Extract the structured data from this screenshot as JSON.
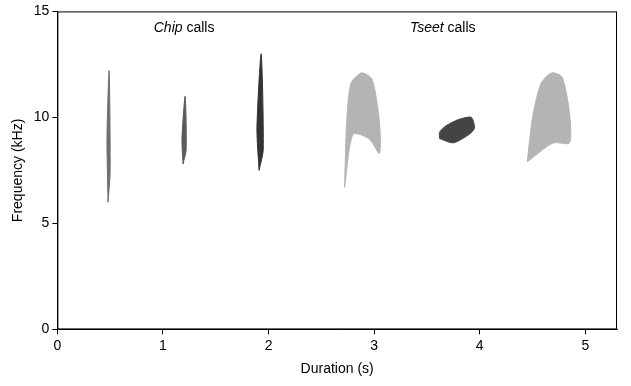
{
  "chart_data": {
    "type": "area",
    "x_label": "Duration (s)",
    "y_label": "Frequency (kHz)",
    "xlim": [
      0,
      5.3
    ],
    "xticks": [
      0,
      1,
      2,
      3,
      4,
      5
    ],
    "ylim": [
      0,
      15
    ],
    "yticks": [
      0,
      5,
      10,
      15
    ],
    "grid": false,
    "annotations": [
      {
        "text": "Chip calls",
        "x": 1.2,
        "y": 14.2
      },
      {
        "text": "Tseet calls",
        "x": 3.65,
        "y": 14.2
      }
    ],
    "series": [
      {
        "color": "#6e6e6e",
        "x": [
          0.48,
          0.5,
          0.49,
          0.47,
          0.48
        ],
        "values": [
          6.0,
          7.5,
          12.2,
          9.0,
          6.0
        ]
      },
      {
        "color": "#5a5a5a",
        "x": [
          1.19,
          1.22,
          1.21,
          1.18,
          1.19
        ],
        "values": [
          7.8,
          8.5,
          11.0,
          9.0,
          7.8
        ]
      },
      {
        "color": "#333333",
        "x": [
          1.91,
          1.95,
          1.93,
          1.89,
          1.91
        ],
        "values": [
          7.5,
          8.5,
          13.0,
          9.5,
          7.5
        ]
      },
      {
        "color": "#b4b4b4",
        "x": [
          2.72,
          2.8,
          2.95,
          3.05,
          3.05,
          2.98,
          2.88,
          2.78,
          2.74,
          2.72
        ],
        "values": [
          6.7,
          9.2,
          9.0,
          8.3,
          9.8,
          11.8,
          12.1,
          11.6,
          9.8,
          6.7
        ]
      },
      {
        "color": "#444444",
        "x": [
          3.62,
          3.75,
          3.9,
          3.95,
          3.92,
          3.8,
          3.68,
          3.62,
          3.62
        ],
        "values": [
          9.0,
          8.8,
          9.2,
          9.5,
          10.0,
          9.9,
          9.6,
          9.3,
          9.0
        ]
      },
      {
        "color": "#b4b4b4",
        "x": [
          4.45,
          4.55,
          4.7,
          4.85,
          4.85,
          4.78,
          4.68,
          4.58,
          4.5,
          4.45
        ],
        "values": [
          7.9,
          8.3,
          8.8,
          8.8,
          10.2,
          11.9,
          12.1,
          11.6,
          10.0,
          7.9
        ]
      }
    ]
  }
}
